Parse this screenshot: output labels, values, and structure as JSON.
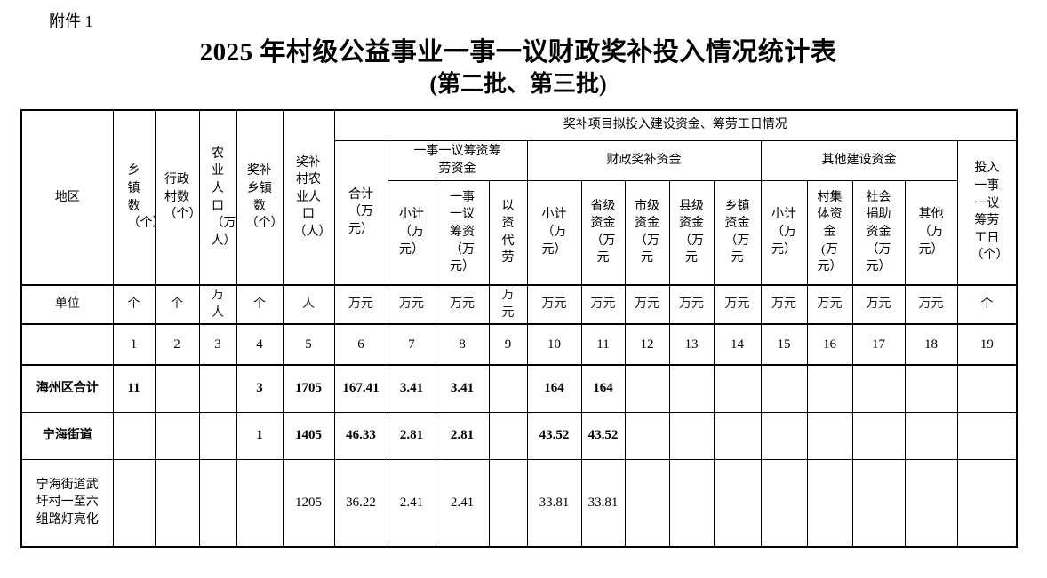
{
  "colors": {
    "text": "#000000",
    "border": "#000000",
    "page_background": "#ffffff"
  },
  "page": {
    "attachment": "附件 1",
    "title": "2025 年村级公益事业一事一议财政奖补投入情况统计表",
    "subtitle": "(第二批、第三批)"
  },
  "table": {
    "corner_label": "地区",
    "left_headers": [
      "乡镇数（个）",
      "行政村数（个）",
      "农业人口（万人）",
      "奖补乡镇数（个）",
      "奖补村农业人口（人）"
    ],
    "group_header": "奖补项目拟投入建设资金、筹劳工日情况",
    "subgroups": [
      {
        "label": "合计（万元）",
        "colspan": 1,
        "rowspan": 2
      },
      {
        "label": "一事一议筹资筹劳资金",
        "colspan": 3,
        "rowspan": 1
      },
      {
        "label": "财政奖补资金",
        "colspan": 5,
        "rowspan": 1
      },
      {
        "label": "其他建设资金",
        "colspan": 4,
        "rowspan": 1
      },
      {
        "label": "投入一事一议筹劳工日（个）",
        "colspan": 1,
        "rowspan": 2
      }
    ],
    "sub_headers": [
      "小计（万元）",
      "一事一议筹资（万元）",
      "以资代劳",
      "小计（万元）",
      "省级资金（万元",
      "市级资金（万元",
      "县级资金（万元",
      "乡镇资金（万元",
      "小计（万元）",
      "村集体资金(万元）",
      "社会捐助资金（万元）",
      "其他（万元）"
    ],
    "unit_row_label": "单位",
    "units": [
      "个",
      "个",
      "万人",
      "个",
      "人",
      "万元",
      "万元",
      "万元",
      "万元",
      "万元",
      "万元",
      "万元",
      "万元",
      "万元",
      "万元",
      "万元",
      "万元",
      "万元",
      "个"
    ],
    "column_numbers": [
      "1",
      "2",
      "3",
      "4",
      "5",
      "6",
      "7",
      "8",
      "9",
      "10",
      "11",
      "12",
      "13",
      "14",
      "15",
      "16",
      "17",
      "18",
      "19"
    ],
    "rows": [
      {
        "region": "海州区合计",
        "bold": true,
        "values": [
          "11",
          "",
          "",
          "3",
          "1705",
          "167.41",
          "3.41",
          "3.41",
          "",
          "164",
          "164",
          "",
          "",
          "",
          "",
          "",
          "",
          "",
          ""
        ]
      },
      {
        "region": "宁海街道",
        "bold": true,
        "values": [
          "",
          "",
          "",
          "1",
          "1405",
          "46.33",
          "2.81",
          "2.81",
          "",
          "43.52",
          "43.52",
          "",
          "",
          "",
          "",
          "",
          "",
          "",
          ""
        ]
      },
      {
        "region": "宁海街道武圩村一至六组路灯亮化",
        "bold": false,
        "values": [
          "",
          "",
          "",
          "",
          "1205",
          "36.22",
          "2.41",
          "2.41",
          "",
          "33.81",
          "33.81",
          "",
          "",
          "",
          "",
          "",
          "",
          "",
          ""
        ]
      }
    ]
  }
}
